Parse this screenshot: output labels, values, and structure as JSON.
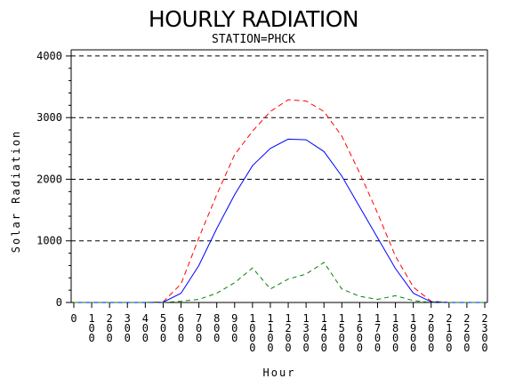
{
  "chart_data": {
    "type": "line",
    "title": "HOURLY RADIATION",
    "subtitle": "STATION=PHCK",
    "xlabel": "Hour",
    "ylabel": "Solar Radiation",
    "ylim": [
      0,
      4000
    ],
    "yticks": [
      "0",
      "1000",
      "2000",
      "3000",
      "4000"
    ],
    "grid": "dashed horizontal at major y ticks",
    "x": [
      0,
      100,
      200,
      300,
      400,
      500,
      600,
      700,
      800,
      900,
      1000,
      1100,
      1200,
      1300,
      1400,
      1500,
      1600,
      1700,
      1800,
      1900,
      2000,
      2100,
      2200,
      2300
    ],
    "xtick_labels": [
      "0",
      "100",
      "200",
      "300",
      "400",
      "500",
      "600",
      "700",
      "800",
      "900",
      "1000",
      "1100",
      "1200",
      "1300",
      "1400",
      "1500",
      "1600",
      "1700",
      "1800",
      "1900",
      "2000",
      "2100",
      "2200",
      "2300"
    ],
    "series": [
      {
        "color": "#ff0000",
        "dash": "6,4",
        "values": [
          0,
          0,
          0,
          0,
          0,
          10,
          300,
          1050,
          1750,
          2400,
          2780,
          3100,
          3290,
          3270,
          3100,
          2700,
          2100,
          1450,
          750,
          250,
          20,
          0,
          0,
          0
        ]
      },
      {
        "color": "#0000ff",
        "dash": "",
        "values": [
          0,
          0,
          0,
          0,
          0,
          5,
          150,
          600,
          1200,
          1750,
          2220,
          2500,
          2650,
          2640,
          2450,
          2050,
          1550,
          1050,
          550,
          150,
          10,
          0,
          0,
          0
        ]
      },
      {
        "color": "#008000",
        "dash": "5,4",
        "values": [
          0,
          0,
          0,
          0,
          0,
          0,
          20,
          50,
          150,
          320,
          560,
          220,
          380,
          460,
          650,
          220,
          100,
          50,
          110,
          30,
          0,
          0,
          0,
          0
        ]
      }
    ]
  }
}
